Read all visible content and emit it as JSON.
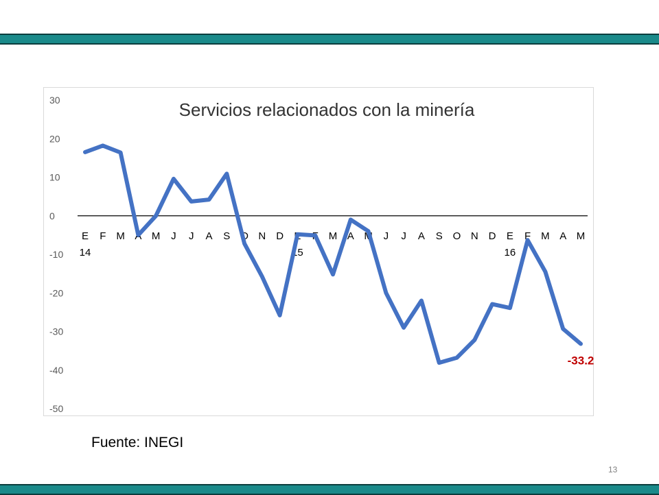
{
  "slide": {
    "source_note": "Fuente: INEGI",
    "page_number": "13",
    "band_color": "#1a8a8a"
  },
  "chart_data": {
    "type": "line",
    "title": "Servicios relacionados con la minería",
    "xlabel": "",
    "ylabel": "",
    "ylim": [
      -50,
      30
    ],
    "yticks": [
      30,
      20,
      10,
      0,
      -10,
      -20,
      -30,
      -40,
      -50
    ],
    "grid": false,
    "legend": "none",
    "categories": [
      "E",
      "F",
      "M",
      "A",
      "M",
      "J",
      "J",
      "A",
      "S",
      "O",
      "N",
      "D",
      "E",
      "F",
      "M",
      "A",
      "M",
      "J",
      "J",
      "A",
      "S",
      "O",
      "N",
      "D",
      "E",
      "F",
      "M",
      "A",
      "M"
    ],
    "year_labels": [
      {
        "label": "14",
        "index": 0
      },
      {
        "label": "15",
        "index": 12
      },
      {
        "label": "16",
        "index": 24
      }
    ],
    "series": [
      {
        "color": "#4472c4",
        "values": [
          16.5,
          18.2,
          16.4,
          -5.0,
          0.0,
          9.6,
          3.7,
          4.2,
          10.9,
          -7.2,
          -15.8,
          -25.8,
          -4.8,
          -5.1,
          -15.2,
          -1.0,
          -4.0,
          -20.0,
          -29.0,
          -22.0,
          -38.1,
          -36.8,
          -32.2,
          -22.9,
          -23.9,
          -6.3,
          -14.5,
          -29.3,
          -33.2
        ]
      }
    ],
    "annotations": [
      {
        "text": "-33.2",
        "index": 28,
        "color": "#c00000"
      }
    ]
  }
}
